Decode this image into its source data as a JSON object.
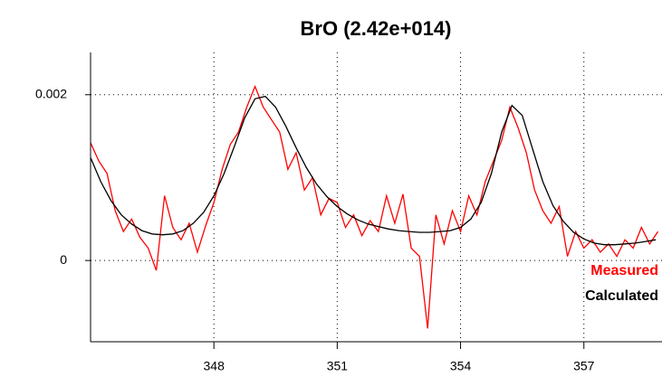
{
  "chart_data": {
    "type": "line",
    "title": "BrO (2.42e+014)",
    "xlim": [
      345,
      358.9
    ],
    "xticks": [
      348,
      351,
      354,
      357
    ],
    "ylim": [
      -0.00098,
      0.00251
    ],
    "yticks": [
      0,
      0.002
    ],
    "grid": true,
    "series": [
      {
        "name": "Measured",
        "color": "#ff0000",
        "x": [
          345.0,
          345.2,
          345.4,
          345.6,
          345.8,
          346.0,
          346.2,
          346.4,
          346.6,
          346.8,
          347.0,
          347.2,
          347.4,
          347.6,
          347.8,
          348.0,
          348.2,
          348.4,
          348.6,
          348.8,
          349.0,
          349.2,
          349.4,
          349.6,
          349.8,
          350.0,
          350.2,
          350.4,
          350.6,
          350.8,
          351.0,
          351.2,
          351.4,
          351.6,
          351.8,
          352.0,
          352.2,
          352.4,
          352.6,
          352.8,
          353.0,
          353.2,
          353.4,
          353.6,
          353.8,
          354.0,
          354.2,
          354.4,
          354.6,
          354.8,
          355.0,
          355.2,
          355.4,
          355.6,
          355.8,
          356.0,
          356.2,
          356.4,
          356.6,
          356.8,
          357.0,
          357.2,
          357.4,
          357.6,
          357.8,
          358.0,
          358.2,
          358.4,
          358.6,
          358.8
        ],
        "values": [
          0.00142,
          0.0012,
          0.00105,
          0.0006,
          0.00035,
          0.0005,
          0.00028,
          0.00015,
          -0.00012,
          0.00078,
          0.0004,
          0.00025,
          0.00045,
          0.0001,
          0.00042,
          0.0007,
          0.0011,
          0.0014,
          0.00155,
          0.00185,
          0.0021,
          0.00185,
          0.0017,
          0.00155,
          0.0011,
          0.0013,
          0.00085,
          0.001,
          0.00055,
          0.00075,
          0.0007,
          0.0004,
          0.00055,
          0.0003,
          0.00048,
          0.00035,
          0.00078,
          0.00045,
          0.0008,
          0.00015,
          5e-05,
          -0.00082,
          0.00055,
          0.0002,
          0.0006,
          0.00035,
          0.00078,
          0.00055,
          0.00095,
          0.0012,
          0.00145,
          0.00185,
          0.0016,
          0.0013,
          0.00085,
          0.0006,
          0.00045,
          0.00065,
          5e-05,
          0.00035,
          0.00015,
          0.00025,
          0.0001,
          0.0002,
          5e-05,
          0.00025,
          0.00015,
          0.0004,
          0.0002,
          0.00035
        ]
      },
      {
        "name": "Calculated",
        "color": "#000000",
        "x": [
          345,
          345.25,
          345.5,
          345.75,
          346,
          346.25,
          346.5,
          346.75,
          347,
          347.25,
          347.5,
          347.75,
          348,
          348.25,
          348.5,
          348.75,
          349,
          349.25,
          349.5,
          349.75,
          350,
          350.25,
          350.5,
          350.75,
          351,
          351.25,
          351.5,
          351.75,
          352,
          352.25,
          352.5,
          352.75,
          353,
          353.25,
          353.5,
          353.75,
          354,
          354.25,
          354.5,
          354.75,
          355,
          355.25,
          355.5,
          355.75,
          356,
          356.25,
          356.5,
          356.75,
          357,
          357.25,
          357.5,
          357.75,
          358,
          358.25,
          358.5,
          358.75
        ],
        "values": [
          0.00124,
          0.00095,
          0.00072,
          0.00055,
          0.00044,
          0.00036,
          0.00032,
          0.00031,
          0.00032,
          0.00036,
          0.00045,
          0.00058,
          0.00078,
          0.00105,
          0.00138,
          0.00172,
          0.00195,
          0.00198,
          0.00185,
          0.00162,
          0.00136,
          0.00112,
          0.00092,
          0.00077,
          0.00065,
          0.00056,
          0.00049,
          0.00044,
          0.00041,
          0.00038,
          0.00036,
          0.00035,
          0.00034,
          0.00034,
          0.00035,
          0.00036,
          0.0004,
          0.0005,
          0.0007,
          0.00105,
          0.00155,
          0.00187,
          0.00175,
          0.00135,
          0.00095,
          0.00066,
          0.00047,
          0.00034,
          0.00026,
          0.00021,
          0.00019,
          0.00019,
          0.0002,
          0.00021,
          0.00023,
          0.00025
        ]
      }
    ]
  }
}
